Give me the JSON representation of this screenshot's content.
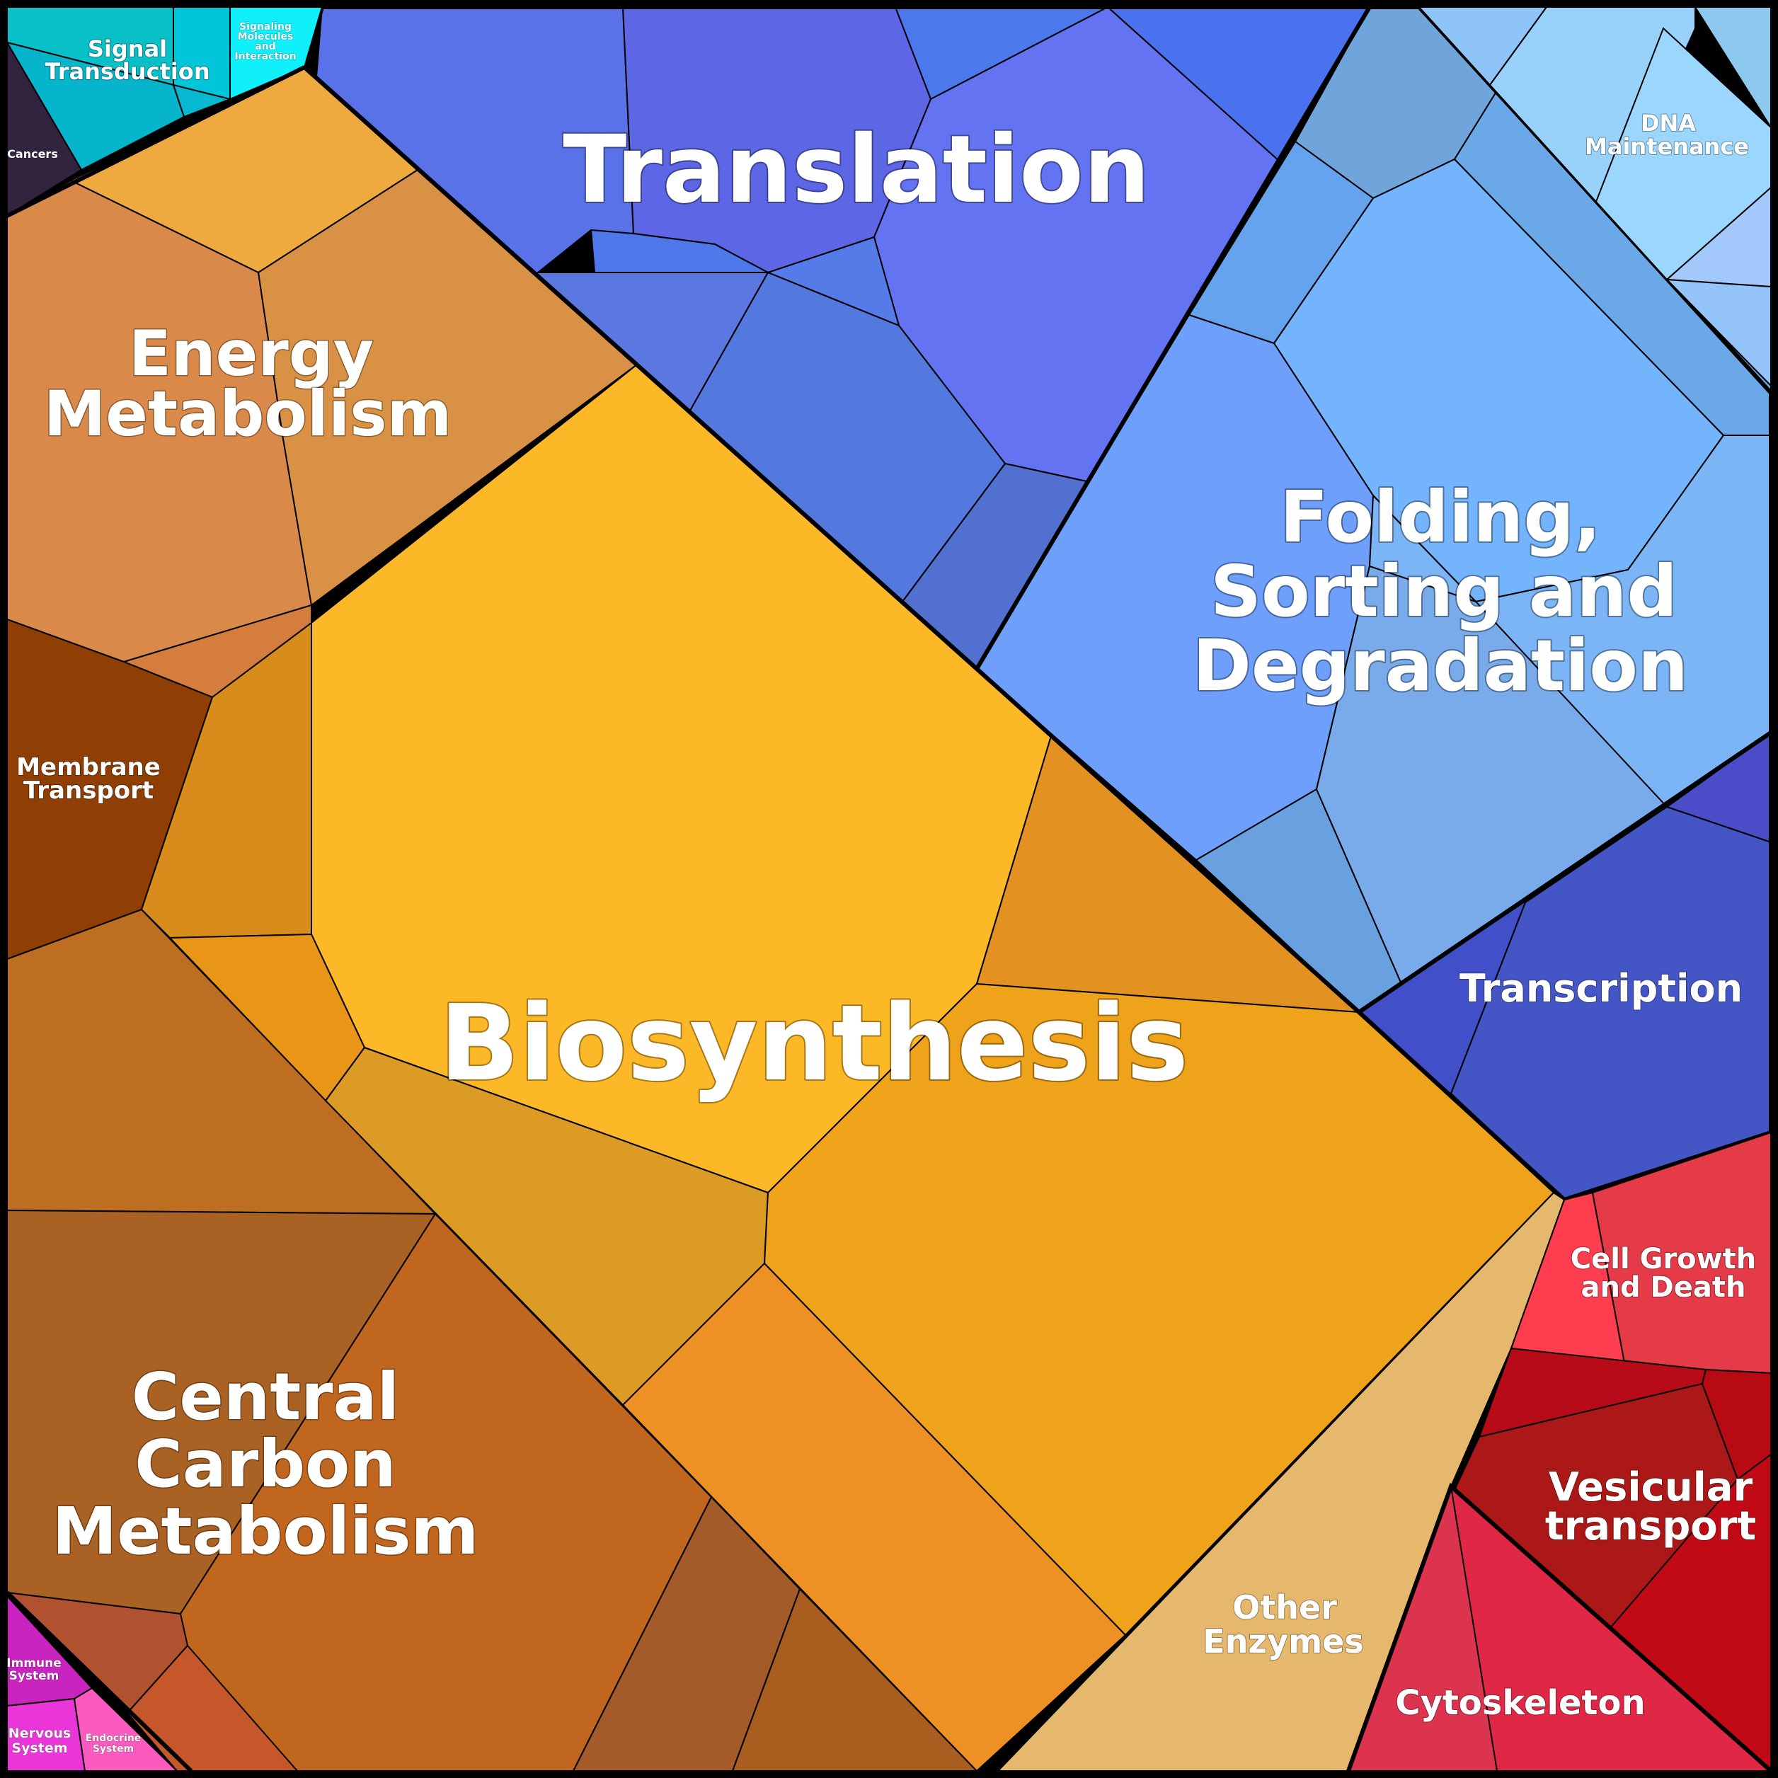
{
  "labels": {
    "translation": "Translation",
    "biosynthesis": "Biosynthesis",
    "folding": [
      "Folding,",
      "Sorting and",
      "Degradation"
    ],
    "energy": [
      "Energy",
      "Metabolism"
    ],
    "central_carbon": [
      "Central",
      "Carbon",
      "Metabolism"
    ],
    "membrane_transport": [
      "Membrane",
      "Transport"
    ],
    "signal_transduction": [
      "Signal",
      "Transduction"
    ],
    "signaling_molecules": [
      "Signaling",
      "Molecules",
      "and",
      "Interaction"
    ],
    "cancers": "Cancers",
    "dna_maintenance": [
      "DNA",
      "Maintenance"
    ],
    "transcription": "Transcription",
    "cell_growth": [
      "Cell Growth",
      "and Death"
    ],
    "vesicular": [
      "Vesicular",
      "transport"
    ],
    "cytoskeleton": "Cytoskeleton",
    "other_enzymes": [
      "Other",
      "Enzymes"
    ],
    "immune": [
      "Immune",
      "System"
    ],
    "nervous": [
      "Nervous",
      "System"
    ],
    "endocrine": [
      "Endocrine",
      "System"
    ]
  },
  "colors": {
    "background_border": "#000000",
    "translation": "#5b6fe6",
    "folding": "#72a8f5",
    "dna_maintenance": "#96cdfa",
    "transcription": "#4654c6",
    "biosynthesis": "#fdb827",
    "energy": "#d98a4a",
    "central_carbon": "#b7621f",
    "membrane_transport": "#8f3e04",
    "signal_transduction": "#0ab7cf",
    "cancers": "#32233e",
    "cell_growth": "#e73846",
    "vesicular": "#b5141b",
    "cytoskeleton": "#e0264a",
    "other_enzymes": "#e6b86e",
    "immune": "#c828c0",
    "nervous": "#e93bd6",
    "endocrine": "#fb59bf"
  }
}
